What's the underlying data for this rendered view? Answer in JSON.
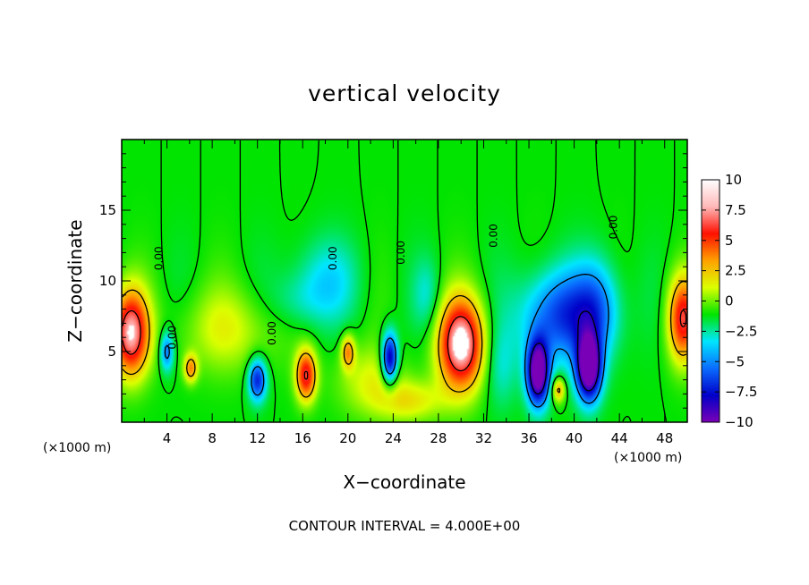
{
  "chart_data": {
    "type": "heatmap",
    "title": "vertical velocity",
    "xlabel": "X−coordinate",
    "ylabel": "Z−coordinate",
    "x_unit_left": "(×1000 m)",
    "x_unit_right": "(×1000 m)",
    "xlim": [
      0,
      50
    ],
    "ylim": [
      0,
      20
    ],
    "x_ticks": [
      4,
      8,
      12,
      16,
      20,
      24,
      28,
      32,
      36,
      40,
      44,
      48
    ],
    "y_ticks": [
      5,
      10,
      15
    ],
    "colorbar": {
      "ticks": [
        10,
        7.5,
        5,
        2.5,
        0,
        -2.5,
        -5,
        -7.5,
        -10
      ],
      "tick_labels": [
        "10",
        "7.5",
        "5",
        "2.5",
        "0",
        "−2.5",
        "−5",
        "−7.5",
        "−10"
      ],
      "range": [
        -10,
        10
      ],
      "colors": [
        "#7a00b8",
        "#0000c8",
        "#0a6cff",
        "#00e6ff",
        "#00e400",
        "#dcff00",
        "#ffa000",
        "#ff1000",
        "#ffb8b8"
      ]
    },
    "contour_labels": [
      {
        "text": "0.00",
        "x": 3.6,
        "y": 11.6,
        "rot": -90
      },
      {
        "text": "0.00",
        "x": 4.8,
        "y": 6.0,
        "rot": -90
      },
      {
        "text": "0.00",
        "x": 13.6,
        "y": 6.3,
        "rot": -90
      },
      {
        "text": "0.00",
        "x": 19.0,
        "y": 11.6,
        "rot": -90
      },
      {
        "text": "0.00",
        "x": 25.0,
        "y": 12.0,
        "rot": -90
      },
      {
        "text": "0.00",
        "x": 33.2,
        "y": 13.2,
        "rot": -90
      },
      {
        "text": "0.00",
        "x": 43.8,
        "y": 13.8,
        "rot": -90
      }
    ],
    "features": [
      {
        "x": 0.8,
        "z": 6.3,
        "w": 10,
        "sx": 1.6,
        "sz": 3.0
      },
      {
        "x": 49.6,
        "z": 7.3,
        "w": 8,
        "sx": 1.3,
        "sz": 3.0
      },
      {
        "x": 30.0,
        "z": 5.5,
        "w": 11,
        "sx": 2.0,
        "sz": 3.2
      },
      {
        "x": 16.3,
        "z": 3.3,
        "w": 8,
        "sx": 0.9,
        "sz": 1.8
      },
      {
        "x": 20.0,
        "z": 5.0,
        "w": 5,
        "sx": 0.6,
        "sz": 1.2
      },
      {
        "x": 6.1,
        "z": 3.8,
        "w": 5,
        "sx": 0.6,
        "sz": 1.0
      },
      {
        "x": 38.6,
        "z": 2.3,
        "w": 5,
        "sx": 0.6,
        "sz": 0.9
      },
      {
        "x": 9.5,
        "z": 6.5,
        "w": 2.5,
        "sx": 4.5,
        "sz": 3.0
      },
      {
        "x": 22.0,
        "z": 3.0,
        "w": 2.5,
        "sx": 3.0,
        "sz": 2.5
      },
      {
        "x": 25.5,
        "z": 1.5,
        "w": 3.0,
        "sx": 3.0,
        "sz": 1.5
      },
      {
        "x": 36.8,
        "z": 3.5,
        "w": -12,
        "sx": 1.0,
        "sz": 2.3
      },
      {
        "x": 41.3,
        "z": 3.8,
        "w": -12,
        "sx": 1.1,
        "sz": 2.3
      },
      {
        "x": 38.8,
        "z": 7.5,
        "w": -6,
        "sx": 3.5,
        "sz": 3.2
      },
      {
        "x": 42.0,
        "z": 8.0,
        "w": -4,
        "sx": 2.0,
        "sz": 3.5
      },
      {
        "x": 23.7,
        "z": 4.5,
        "w": -9,
        "sx": 0.7,
        "sz": 1.8
      },
      {
        "x": 12.0,
        "z": 3.0,
        "w": -7,
        "sx": 0.8,
        "sz": 1.5
      },
      {
        "x": 4.0,
        "z": 5.0,
        "w": -5,
        "sx": 0.6,
        "sz": 1.4
      },
      {
        "x": 18.0,
        "z": 10.0,
        "w": -2.5,
        "sx": 3.0,
        "sz": 3.0
      },
      {
        "x": 33.5,
        "z": 4.0,
        "w": -2.0,
        "sx": 1.5,
        "sz": 3.0
      },
      {
        "x": 15.5,
        "z": 8.5,
        "w": -1.5,
        "sx": 2.5,
        "sz": 2.0
      },
      {
        "x": 27.0,
        "z": 9.0,
        "w": -1.8,
        "sx": 1.2,
        "sz": 2.5
      }
    ]
  },
  "footer": "CONTOUR INTERVAL =  4.000E+00"
}
